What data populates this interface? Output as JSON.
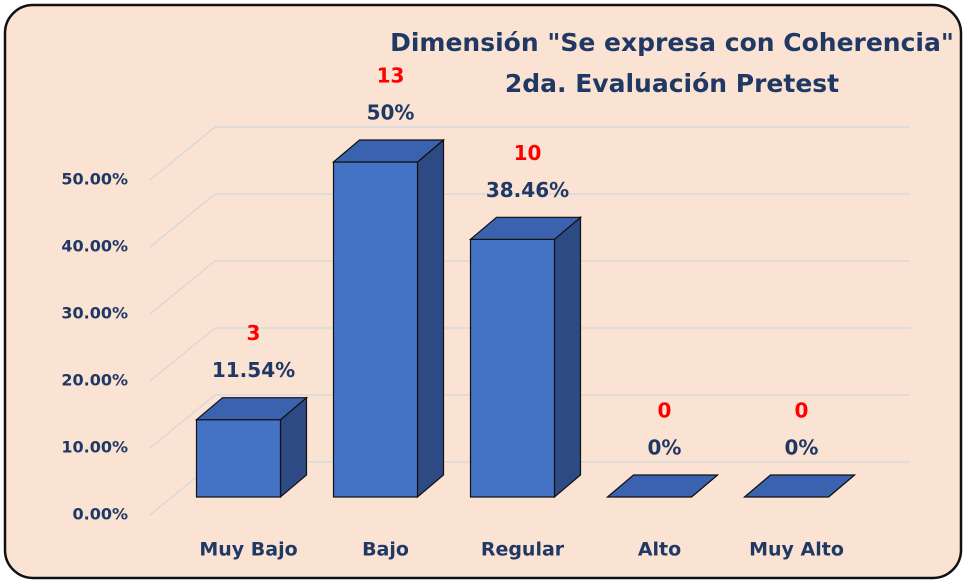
{
  "chart_data": {
    "type": "bar3d",
    "title": "Dimensión \"Se expresa con Coherencia\"",
    "subtitle": "2da. Evaluación Pretest",
    "categories": [
      "Muy Bajo",
      "Bajo",
      "Regular",
      "Alto",
      "Muy Alto"
    ],
    "values": [
      11.54,
      50,
      38.46,
      0,
      0
    ],
    "value_labels": [
      "11.54%",
      "50%",
      "38.46%",
      "0%",
      "0%"
    ],
    "counts": [
      3,
      13,
      10,
      0,
      0
    ],
    "color": "#4472c4",
    "ylim": [
      0,
      50
    ],
    "yticks": [
      {
        "value": 0,
        "label": "0.00%"
      },
      {
        "value": 10,
        "label": "10.00%"
      },
      {
        "value": 20,
        "label": "20.00%"
      },
      {
        "value": 30,
        "label": "30.00%"
      },
      {
        "value": 40,
        "label": "40.00%"
      },
      {
        "value": 50,
        "label": "50.00%"
      }
    ],
    "grid": true
  }
}
